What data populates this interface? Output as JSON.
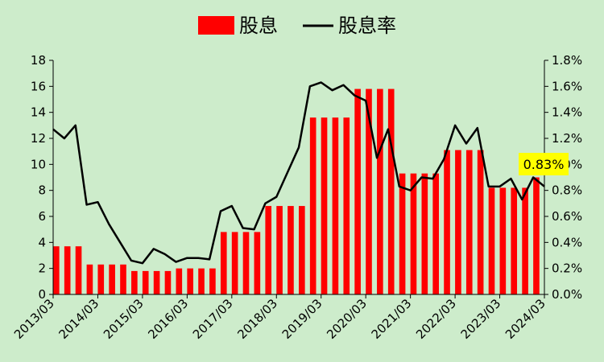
{
  "chart_data": {
    "type": "bar+line",
    "title": "",
    "legend": {
      "placement": "top-center",
      "entries": [
        {
          "label": "股息",
          "kind": "bar",
          "color": "#ff0000"
        },
        {
          "label": "股息率",
          "kind": "line",
          "color": "#000000"
        }
      ]
    },
    "x_tick_labels": [
      "2013/03",
      "2014/03",
      "2015/03",
      "2016/03",
      "2017/03",
      "2018/03",
      "2019/03",
      "2020/03",
      "2021/03",
      "2022/03",
      "2023/03",
      "2024/03"
    ],
    "x_tick_labels_rotation_deg": -45,
    "quarters_per_tick": 4,
    "y_left": {
      "min": 0,
      "max": 18,
      "step": 2,
      "tick_labels": [
        "0",
        "2",
        "4",
        "6",
        "8",
        "10",
        "12",
        "14",
        "16",
        "18"
      ]
    },
    "y_right": {
      "min": 0,
      "max": 1.8,
      "step": 0.2,
      "unit": "%",
      "tick_labels": [
        "0.0%",
        "0.2%",
        "0.4%",
        "0.6%",
        "0.8%",
        "1.0%",
        "1.2%",
        "1.4%",
        "1.6%",
        "1.8%"
      ]
    },
    "grid": false,
    "series": [
      {
        "name": "股息",
        "type": "bar",
        "axis": "left",
        "color": "#ff0000",
        "values": [
          3.7,
          3.7,
          3.7,
          2.3,
          2.3,
          2.3,
          2.3,
          1.8,
          1.8,
          1.8,
          1.8,
          2.0,
          2.0,
          2.0,
          2.0,
          4.8,
          4.8,
          4.8,
          4.8,
          6.8,
          6.8,
          6.8,
          6.8,
          13.6,
          13.6,
          13.6,
          13.6,
          15.8,
          15.8,
          15.8,
          15.8,
          9.3,
          9.3,
          9.3,
          9.3,
          11.1,
          11.1,
          11.1,
          11.1,
          8.2,
          8.2,
          8.2,
          8.2,
          9.0
        ]
      },
      {
        "name": "股息率",
        "type": "line",
        "axis": "right",
        "color": "#000000",
        "unit": "%",
        "values": [
          1.27,
          1.2,
          1.3,
          0.69,
          0.71,
          0.54,
          0.4,
          0.26,
          0.24,
          0.35,
          0.31,
          0.25,
          0.28,
          0.28,
          0.27,
          0.64,
          0.68,
          0.51,
          0.5,
          0.7,
          0.75,
          0.94,
          1.13,
          1.6,
          1.63,
          1.57,
          1.61,
          1.53,
          1.49,
          1.05,
          1.27,
          0.83,
          0.8,
          0.9,
          0.89,
          1.04,
          1.3,
          1.16,
          1.28,
          0.83,
          0.83,
          0.89,
          0.73,
          0.9,
          0.83
        ]
      }
    ],
    "annotation": {
      "text": "0.83%",
      "background": "#ffff00"
    }
  }
}
